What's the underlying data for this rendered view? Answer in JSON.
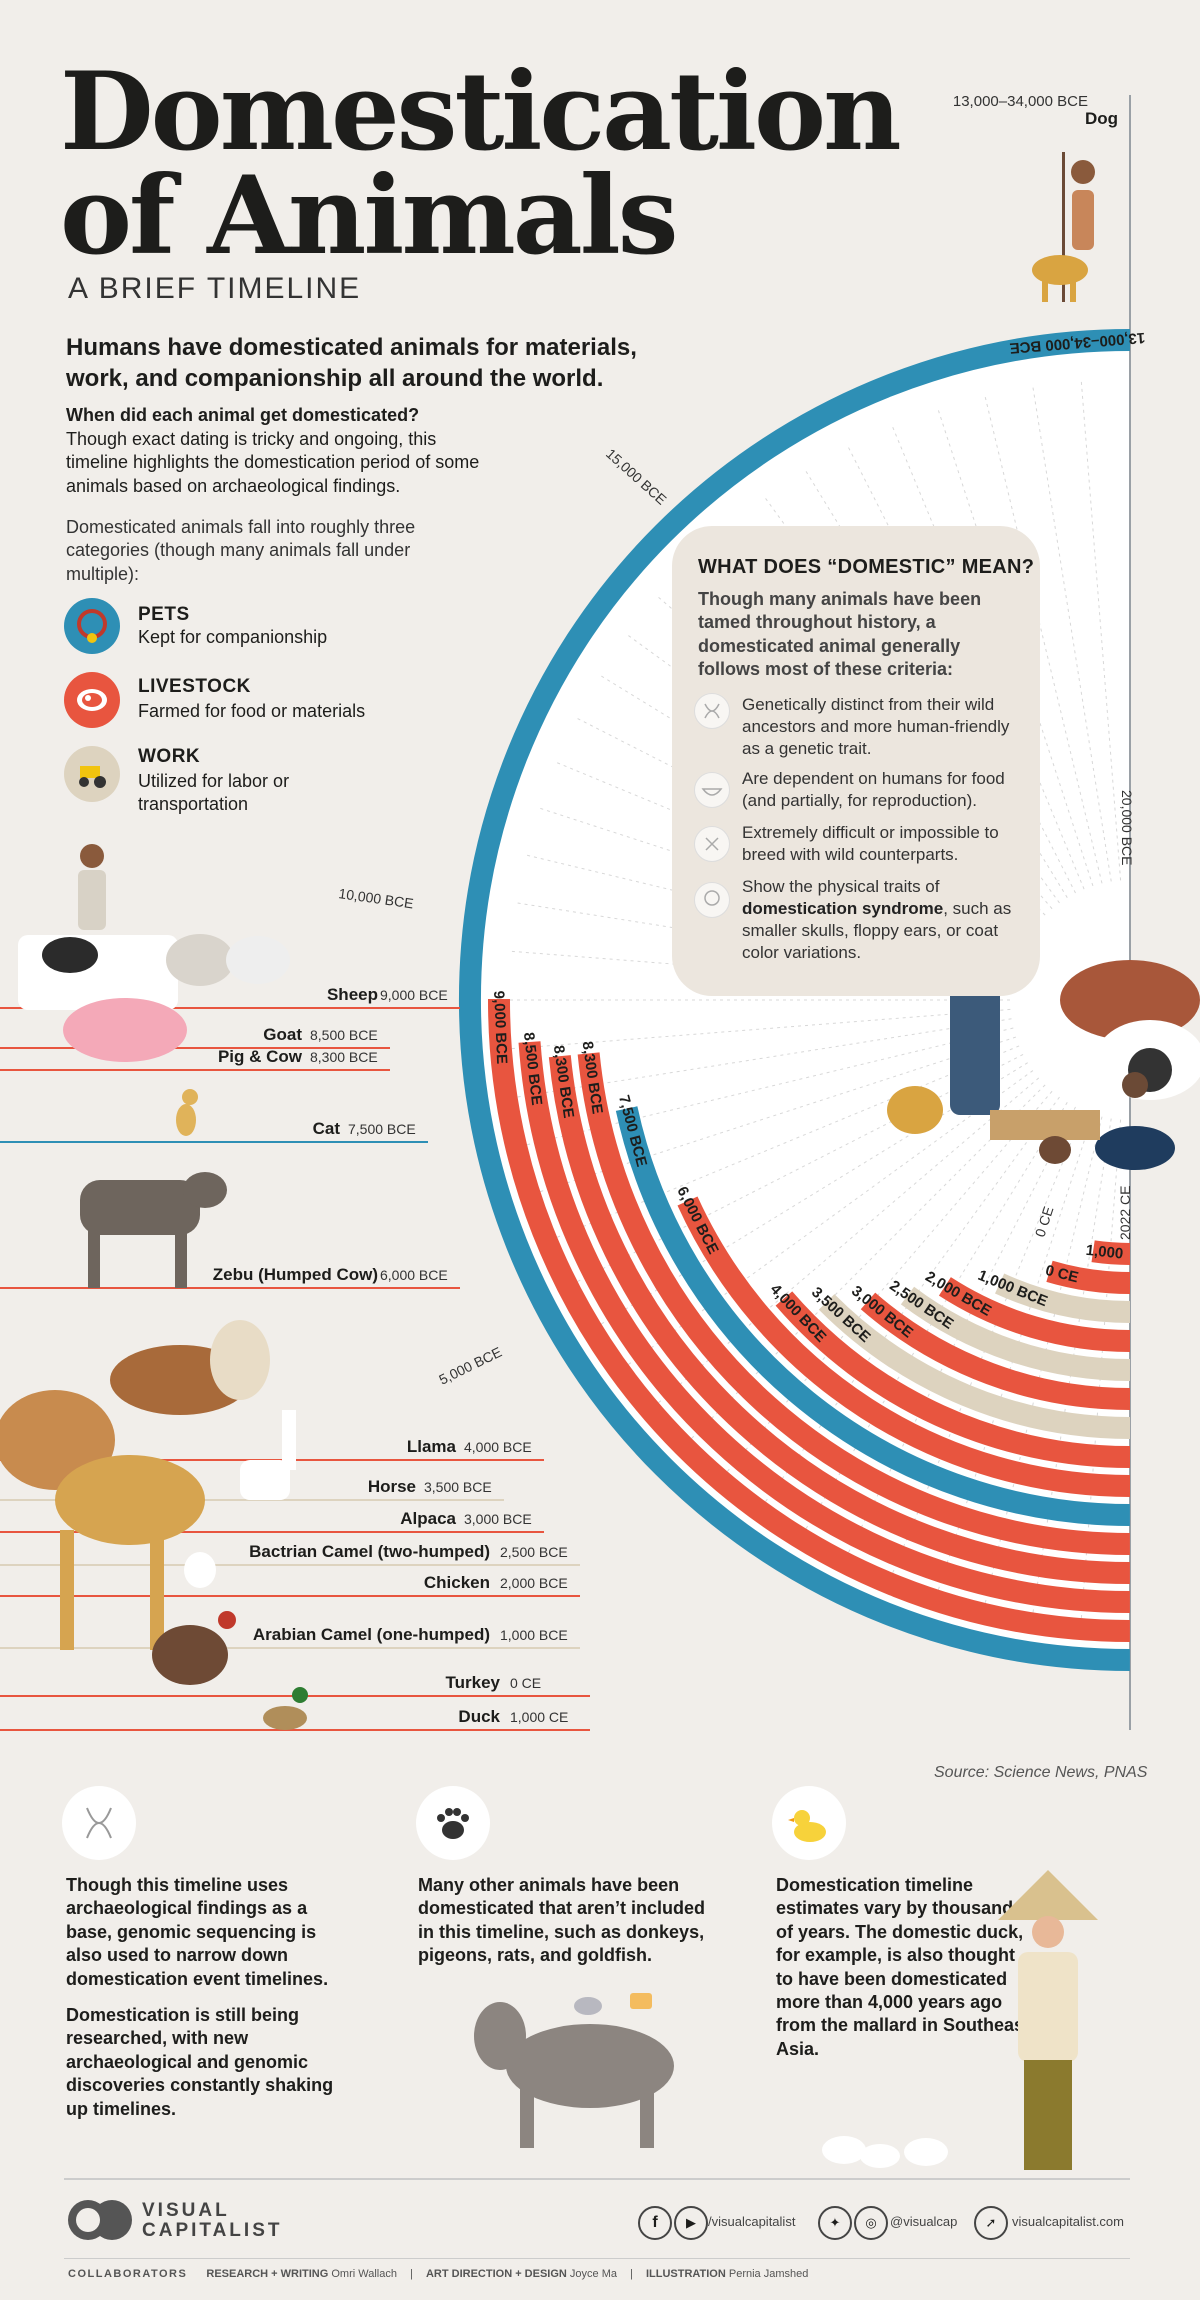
{
  "header": {
    "title_line1": "Domestication",
    "title_line2": "of Animals",
    "subtitle": "A BRIEF TIMELINE",
    "lead": "Humans have domesticated animals for materials, work, and companionship all around the world.",
    "question": "When did each animal get domesticated?",
    "question_body": "Though exact dating is tricky and ongoing, this timeline highlights the domestication period of some animals based on archaeological findings.",
    "categories_intro": "Domesticated animals fall into roughly three categories (though many animals fall under multiple):"
  },
  "categories": [
    {
      "title": "PETS",
      "desc": "Kept for companionship",
      "color": "#2e8fb5",
      "icon": "collar-icon"
    },
    {
      "title": "LIVESTOCK",
      "desc": "Farmed for food or materials",
      "color": "#e8553f",
      "icon": "meat-icon"
    },
    {
      "title": "WORK",
      "desc": "Utilized for labor or transportation",
      "color": "#ddd3bf",
      "icon": "tractor-icon"
    }
  ],
  "domestic_box": {
    "heading": "WHAT DOES “DOMESTIC” MEAN?",
    "intro": "Though many animals have been tamed throughout history, a domesticated animal generally follows most of these criteria:",
    "criteria": [
      {
        "icon": "dna-icon",
        "text": "Genetically distinct from their wild ancestors and more human-friendly as a genetic trait."
      },
      {
        "icon": "bowl-icon",
        "text": "Are dependent on humans for food (and partially, for reproduction)."
      },
      {
        "icon": "cross-icon",
        "text": "Extremely difficult or impossible to breed with wild counterparts."
      },
      {
        "icon": "head-icon",
        "text_before": "Show the physical traits of ",
        "text_bold": "domestication syndrome",
        "text_after": ", such as smaller skulls, floppy ears, or coat color variations."
      }
    ]
  },
  "chart_data": {
    "type": "radial-bar",
    "scale_labels": [
      "15,000 BCE",
      "10,000 BCE",
      "5,000 BCE",
      "20,000 BCE",
      "0 CE",
      "2022 CE"
    ],
    "series": [
      {
        "animal": "Dog",
        "date": "13,000–34,000 BCE",
        "bar_label": "13,000–34,000 BCE",
        "category": "pet",
        "start_year": -34000
      },
      {
        "animal": "Sheep",
        "date": "9,000 BCE",
        "bar_label": "9,000 BCE",
        "category": "livestock",
        "start_year": -9000
      },
      {
        "animal": "Goat",
        "date": "8,500 BCE",
        "bar_label": "8,500 BCE",
        "category": "livestock",
        "start_year": -8500
      },
      {
        "animal": "Pig & Cow",
        "date": "8,300 BCE",
        "bar_label": "8,300 BCE",
        "category": "livestock",
        "start_year": -8300,
        "bars": 2
      },
      {
        "animal": "Cat",
        "date": "7,500 BCE",
        "bar_label": "7,500 BCE",
        "category": "pet",
        "start_year": -7500
      },
      {
        "animal": "Zebu (Humped Cow)",
        "date": "6,000 BCE",
        "bar_label": "6,000 BCE",
        "category": "livestock",
        "start_year": -6000
      },
      {
        "animal": "Llama",
        "date": "4,000 BCE",
        "bar_label": "4,000 BCE",
        "category": "livestock",
        "start_year": -4000
      },
      {
        "animal": "Horse",
        "date": "3,500 BCE",
        "bar_label": "3,500 BCE",
        "category": "work",
        "start_year": -3500
      },
      {
        "animal": "Alpaca",
        "date": "3,000 BCE",
        "bar_label": "3,000 BCE",
        "category": "livestock",
        "start_year": -3000
      },
      {
        "animal": "Bactrian Camel (two-humped)",
        "date": "2,500 BCE",
        "bar_label": "2,500 BCE",
        "category": "work",
        "start_year": -2500
      },
      {
        "animal": "Chicken",
        "date": "2,000 BCE",
        "bar_label": "2,000 BCE",
        "category": "livestock",
        "start_year": -2000
      },
      {
        "animal": "Arabian Camel (one-humped)",
        "date": "1,000 BCE",
        "bar_label": "1,000 BCE",
        "category": "work",
        "start_year": -1000
      },
      {
        "animal": "Turkey",
        "date": "0 CE",
        "bar_label": "0 CE",
        "category": "livestock",
        "start_year": 0
      },
      {
        "animal": "Duck",
        "date": "1,000 CE",
        "bar_label": "1,000",
        "category": "livestock",
        "start_year": 1000
      }
    ],
    "colors": {
      "pet": "#2e8fb5",
      "livestock": "#e8553f",
      "work": "#ddd3bf"
    },
    "end_year": 2022
  },
  "source": "Source: Science News, PNAS",
  "bottom": {
    "col1_p1": "Though this timeline uses archaeological findings as a base, genomic sequencing is also used to narrow down domestication event timelines.",
    "col1_p2": "Domestication is still being researched, with new archaeological and genomic discoveries constantly shaking up timelines.",
    "col2": "Many other animals have been domesticated that aren’t included in this timeline, such as donkeys, pigeons, rats, and goldfish.",
    "col3": "Domestication timeline estimates vary by thousands of years. The domestic duck, for example, is also thought to have been domesticated more than 4,000 years ago from the mallard in Southeast Asia."
  },
  "footer": {
    "brand_line1": "VISUAL",
    "brand_line2": "CAPITALIST",
    "social1": "/visualcapitalist",
    "social2": "@visualcap",
    "website": "visualcapitalist.com",
    "collaborators": "COLLABORATORS",
    "research_label": "RESEARCH + WRITING",
    "research_name": "Omri Wallach",
    "art_label": "ART DIRECTION + DESIGN",
    "art_name": "Joyce Ma",
    "illus_label": "ILLUSTRATION",
    "illus_name": "Pernia Jamshed"
  }
}
